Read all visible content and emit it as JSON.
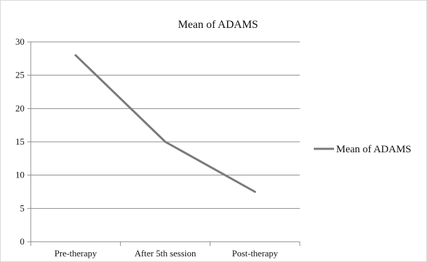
{
  "chart_data": {
    "type": "line",
    "title": "Mean of ADAMS",
    "xlabel": "",
    "ylabel": "",
    "categories": [
      "Pre-therapy",
      "After 5th session",
      "Post-therapy"
    ],
    "series": [
      {
        "name": "Mean of ADAMS",
        "values": [
          28,
          15,
          7.5
        ],
        "color": "#7a7a7a"
      }
    ],
    "ylim": [
      0,
      30
    ],
    "yticks": [
      0,
      5,
      10,
      15,
      20,
      25,
      30
    ],
    "grid": true,
    "legend": "right"
  }
}
